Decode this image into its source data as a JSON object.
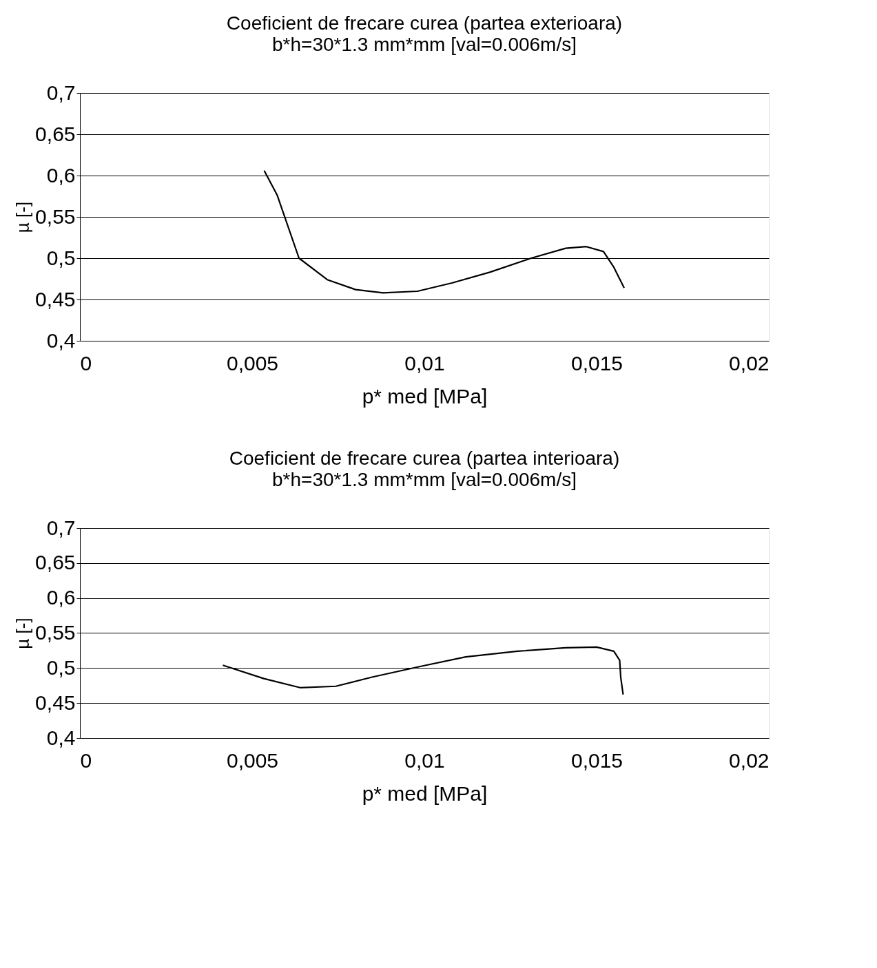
{
  "chart_data": [
    {
      "type": "line",
      "title": "Coeficient de frecare curea (partea exterioara)",
      "subtitle": "b*h=30*1.3 mm*mm [val=0.006m/s]",
      "xlabel": "p* med [MPa]",
      "ylabel": "µ [-]",
      "x": [
        0.00535,
        0.00573,
        0.00636,
        0.00718,
        0.008,
        0.0088,
        0.0098,
        0.0108,
        0.0119,
        0.0131,
        0.0141,
        0.0147,
        0.0152,
        0.0155,
        0.0158
      ],
      "series": [
        {
          "color": "#000000",
          "values": [
            0.606,
            0.576,
            0.5,
            0.474,
            0.462,
            0.458,
            0.46,
            0.47,
            0.483,
            0.5,
            0.512,
            0.514,
            0.508,
            0.489,
            0.464
          ]
        }
      ],
      "xlim": [
        0,
        0.02
      ],
      "xticks": [
        {
          "value": 0,
          "label": "0"
        },
        {
          "value": 0.005,
          "label": "0,005"
        },
        {
          "value": 0.01,
          "label": "0,01"
        },
        {
          "value": 0.015,
          "label": "0,015"
        },
        {
          "value": 0.02,
          "label": "0,02"
        }
      ],
      "ylim": [
        0.4,
        0.7
      ],
      "yticks": [
        {
          "value": 0.4,
          "label": "0,4"
        },
        {
          "value": 0.45,
          "label": "0,45"
        },
        {
          "value": 0.5,
          "label": "0,5"
        },
        {
          "value": 0.55,
          "label": "0,55"
        },
        {
          "value": 0.6,
          "label": "0,6"
        },
        {
          "value": 0.65,
          "label": "0,65"
        },
        {
          "value": 0.7,
          "label": "0,7"
        }
      ],
      "grid": "y",
      "legend": false,
      "marker": "none",
      "line_style": "solid"
    },
    {
      "type": "line",
      "title": "Coeficient de frecare curea (partea interioara)",
      "subtitle": "b*h=30*1.3 mm*mm [val=0.006m/s]",
      "xlabel": "p* med [MPa]",
      "ylabel": "µ [-]",
      "x": [
        0.00415,
        0.00534,
        0.00639,
        0.00743,
        0.00848,
        0.00995,
        0.0112,
        0.0127,
        0.0141,
        0.015,
        0.0155,
        0.01567,
        0.0157,
        0.01577
      ],
      "series": [
        {
          "color": "#000000",
          "values": [
            0.504,
            0.485,
            0.472,
            0.474,
            0.487,
            0.503,
            0.516,
            0.524,
            0.529,
            0.53,
            0.524,
            0.511,
            0.487,
            0.462
          ]
        }
      ],
      "xlim": [
        0,
        0.02
      ],
      "xticks": [
        {
          "value": 0,
          "label": "0"
        },
        {
          "value": 0.005,
          "label": "0,005"
        },
        {
          "value": 0.01,
          "label": "0,01"
        },
        {
          "value": 0.015,
          "label": "0,015"
        },
        {
          "value": 0.02,
          "label": "0,02"
        }
      ],
      "ylim": [
        0.4,
        0.7
      ],
      "yticks": [
        {
          "value": 0.4,
          "label": "0,4"
        },
        {
          "value": 0.45,
          "label": "0,45"
        },
        {
          "value": 0.5,
          "label": "0,5"
        },
        {
          "value": 0.55,
          "label": "0,55"
        },
        {
          "value": 0.6,
          "label": "0,6"
        },
        {
          "value": 0.65,
          "label": "0,65"
        },
        {
          "value": 0.7,
          "label": "0,7"
        }
      ],
      "grid": "y",
      "legend": false,
      "marker": "none",
      "line_style": "solid"
    }
  ]
}
